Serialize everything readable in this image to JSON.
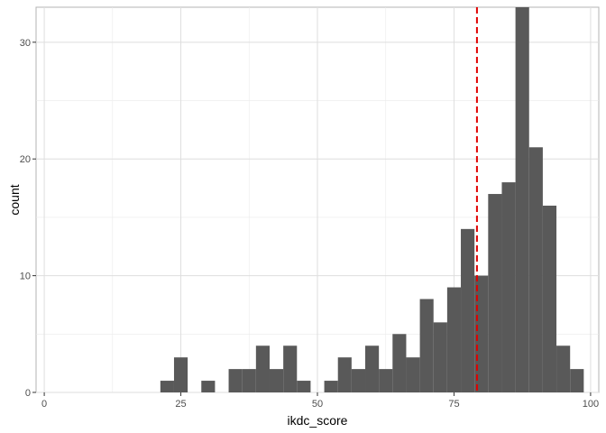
{
  "chart_data": {
    "type": "bar",
    "title": "",
    "xlabel": "ikdc_score",
    "ylabel": "count",
    "xlim": [
      -1.5,
      101.5
    ],
    "ylim": [
      0,
      33
    ],
    "x_ticks": [
      0,
      25,
      50,
      75,
      100
    ],
    "y_ticks": [
      0,
      10,
      20,
      30
    ],
    "bin_width": 2.5,
    "bins": [
      {
        "x": 22.5,
        "count": 1
      },
      {
        "x": 25.0,
        "count": 3
      },
      {
        "x": 30.0,
        "count": 1
      },
      {
        "x": 35.0,
        "count": 2
      },
      {
        "x": 37.5,
        "count": 2
      },
      {
        "x": 40.0,
        "count": 4
      },
      {
        "x": 42.5,
        "count": 2
      },
      {
        "x": 45.0,
        "count": 4
      },
      {
        "x": 47.5,
        "count": 1
      },
      {
        "x": 52.5,
        "count": 1
      },
      {
        "x": 55.0,
        "count": 3
      },
      {
        "x": 57.5,
        "count": 2
      },
      {
        "x": 60.0,
        "count": 4
      },
      {
        "x": 62.5,
        "count": 2
      },
      {
        "x": 65.0,
        "count": 5
      },
      {
        "x": 67.5,
        "count": 3
      },
      {
        "x": 70.0,
        "count": 8
      },
      {
        "x": 72.5,
        "count": 6
      },
      {
        "x": 75.0,
        "count": 9
      },
      {
        "x": 77.5,
        "count": 14
      },
      {
        "x": 80.0,
        "count": 10
      },
      {
        "x": 82.5,
        "count": 17
      },
      {
        "x": 85.0,
        "count": 18
      },
      {
        "x": 87.5,
        "count": 33
      },
      {
        "x": 90.0,
        "count": 21
      },
      {
        "x": 92.5,
        "count": 16
      },
      {
        "x": 95.0,
        "count": 4
      },
      {
        "x": 97.5,
        "count": 2
      }
    ],
    "reference_line": {
      "x": 79.2,
      "color": "#e00000",
      "style": "dashed"
    },
    "bar_color": "#595959",
    "grid": true
  }
}
